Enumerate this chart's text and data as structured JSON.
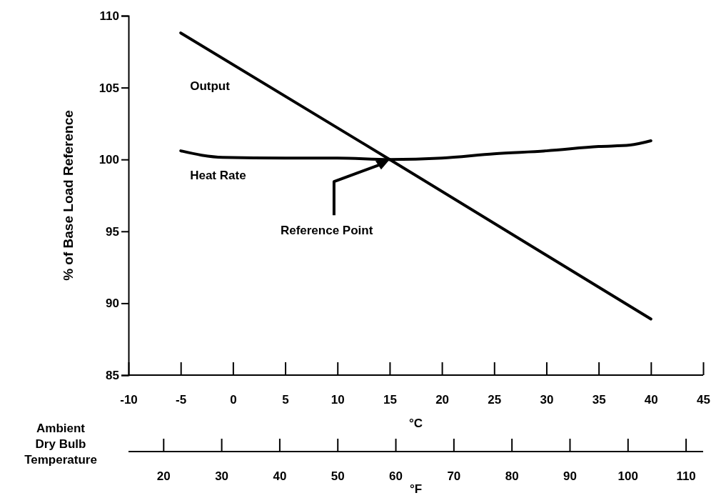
{
  "chart_data": {
    "type": "line",
    "ylabel": "% of Base Load Reference",
    "xlabel": "°C",
    "x2label": "°F",
    "xlim": [
      -10,
      45
    ],
    "xticks": [
      -10,
      -5,
      0,
      5,
      10,
      15,
      20,
      25,
      30,
      35,
      40,
      45
    ],
    "x2lim": [
      14,
      113
    ],
    "x2ticks": [
      20,
      30,
      40,
      50,
      60,
      70,
      80,
      90,
      100,
      110
    ],
    "ylim": [
      85,
      110
    ],
    "yticks": [
      85,
      90,
      95,
      100,
      105,
      110
    ],
    "grid": false,
    "marker": "none",
    "line_style": "solid",
    "series": [
      {
        "name": "Output",
        "color": "#000000",
        "x": [
          -5,
          15,
          40
        ],
        "values": [
          108.8,
          100,
          88.9
        ]
      },
      {
        "name": "Heat Rate",
        "color": "#000000",
        "x": [
          -5,
          -3,
          -1,
          5,
          10,
          15,
          20,
          25,
          30,
          35,
          38,
          40
        ],
        "values": [
          100.6,
          100.3,
          100.15,
          100.1,
          100.1,
          100,
          100.1,
          100.4,
          100.6,
          100.9,
          101,
          101.3
        ]
      }
    ],
    "annotations": [
      "Reference Point",
      "Ambient Dry Bulb Temperature"
    ]
  }
}
